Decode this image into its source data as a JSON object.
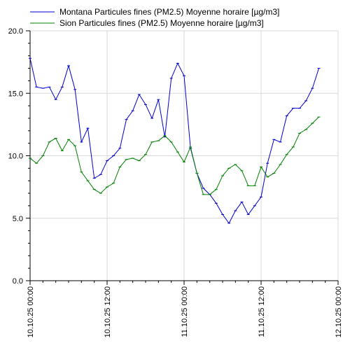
{
  "chart_data": {
    "type": "line",
    "title": "",
    "xlabel": "",
    "ylabel": "",
    "ylim": [
      0,
      20
    ],
    "y_ticks": [
      "0.0",
      "5.0",
      "10.0",
      "15.0",
      "20.0"
    ],
    "x_ticks": [
      "10.10.25 00:00",
      "10.10.25 12:00",
      "11.10.25 00:00",
      "11.10.25 12:00",
      "12.10.25 00:00"
    ],
    "x_range_hours": [
      0,
      48
    ],
    "grid": true,
    "legend_position": "top",
    "series": [
      {
        "name": "Montana Particules fines (PM2.5) Moyenne horaire [µg/m3]",
        "color": "#0000cc",
        "x": [
          0,
          1,
          2,
          3,
          4,
          5,
          6,
          7,
          8,
          9,
          10,
          11,
          12,
          13,
          14,
          15,
          16,
          17,
          18,
          19,
          20,
          21,
          22,
          23,
          24,
          25,
          26,
          27,
          28,
          29,
          30,
          31,
          32,
          33,
          34,
          35,
          36,
          37,
          38,
          39,
          40,
          41,
          42,
          43,
          44,
          45
        ],
        "values": [
          17.8,
          15.5,
          15.4,
          15.5,
          14.5,
          15.5,
          17.2,
          15.3,
          11.1,
          12.2,
          8.2,
          8.5,
          9.6,
          10.0,
          10.6,
          12.9,
          13.6,
          14.9,
          14.1,
          13.0,
          14.5,
          11.5,
          16.2,
          17.4,
          16.4,
          10.6,
          8.6,
          7.4,
          6.9,
          6.2,
          5.3,
          4.6,
          5.6,
          6.3,
          5.3,
          6.0,
          6.7,
          9.4,
          11.3,
          11.1,
          13.2,
          13.8,
          13.8,
          14.4,
          15.4,
          17.0
        ]
      },
      {
        "name": "Sion Particules fines (PM2.5) Moyenne horaire [µg/m3]",
        "color": "#008000",
        "x": [
          0,
          1,
          2,
          3,
          4,
          5,
          6,
          7,
          8,
          9,
          10,
          11,
          12,
          13,
          14,
          15,
          16,
          17,
          18,
          19,
          20,
          21,
          22,
          23,
          24,
          25,
          26,
          27,
          28,
          29,
          30,
          31,
          32,
          33,
          34,
          35,
          36,
          37,
          38,
          39,
          40,
          41,
          42,
          43,
          44,
          45
        ],
        "values": [
          9.8,
          9.4,
          10.0,
          11.1,
          11.4,
          10.4,
          11.3,
          10.8,
          8.7,
          8.0,
          7.3,
          7.0,
          7.5,
          7.8,
          9.1,
          9.7,
          9.8,
          9.6,
          10.1,
          11.1,
          11.2,
          11.6,
          11.1,
          10.3,
          9.5,
          10.7,
          8.6,
          6.9,
          6.9,
          7.3,
          8.4,
          9.0,
          9.3,
          8.8,
          7.6,
          7.6,
          9.1,
          8.3,
          8.6,
          9.3,
          10.1,
          10.7,
          11.8,
          12.1,
          12.6,
          13.1
        ]
      }
    ]
  }
}
